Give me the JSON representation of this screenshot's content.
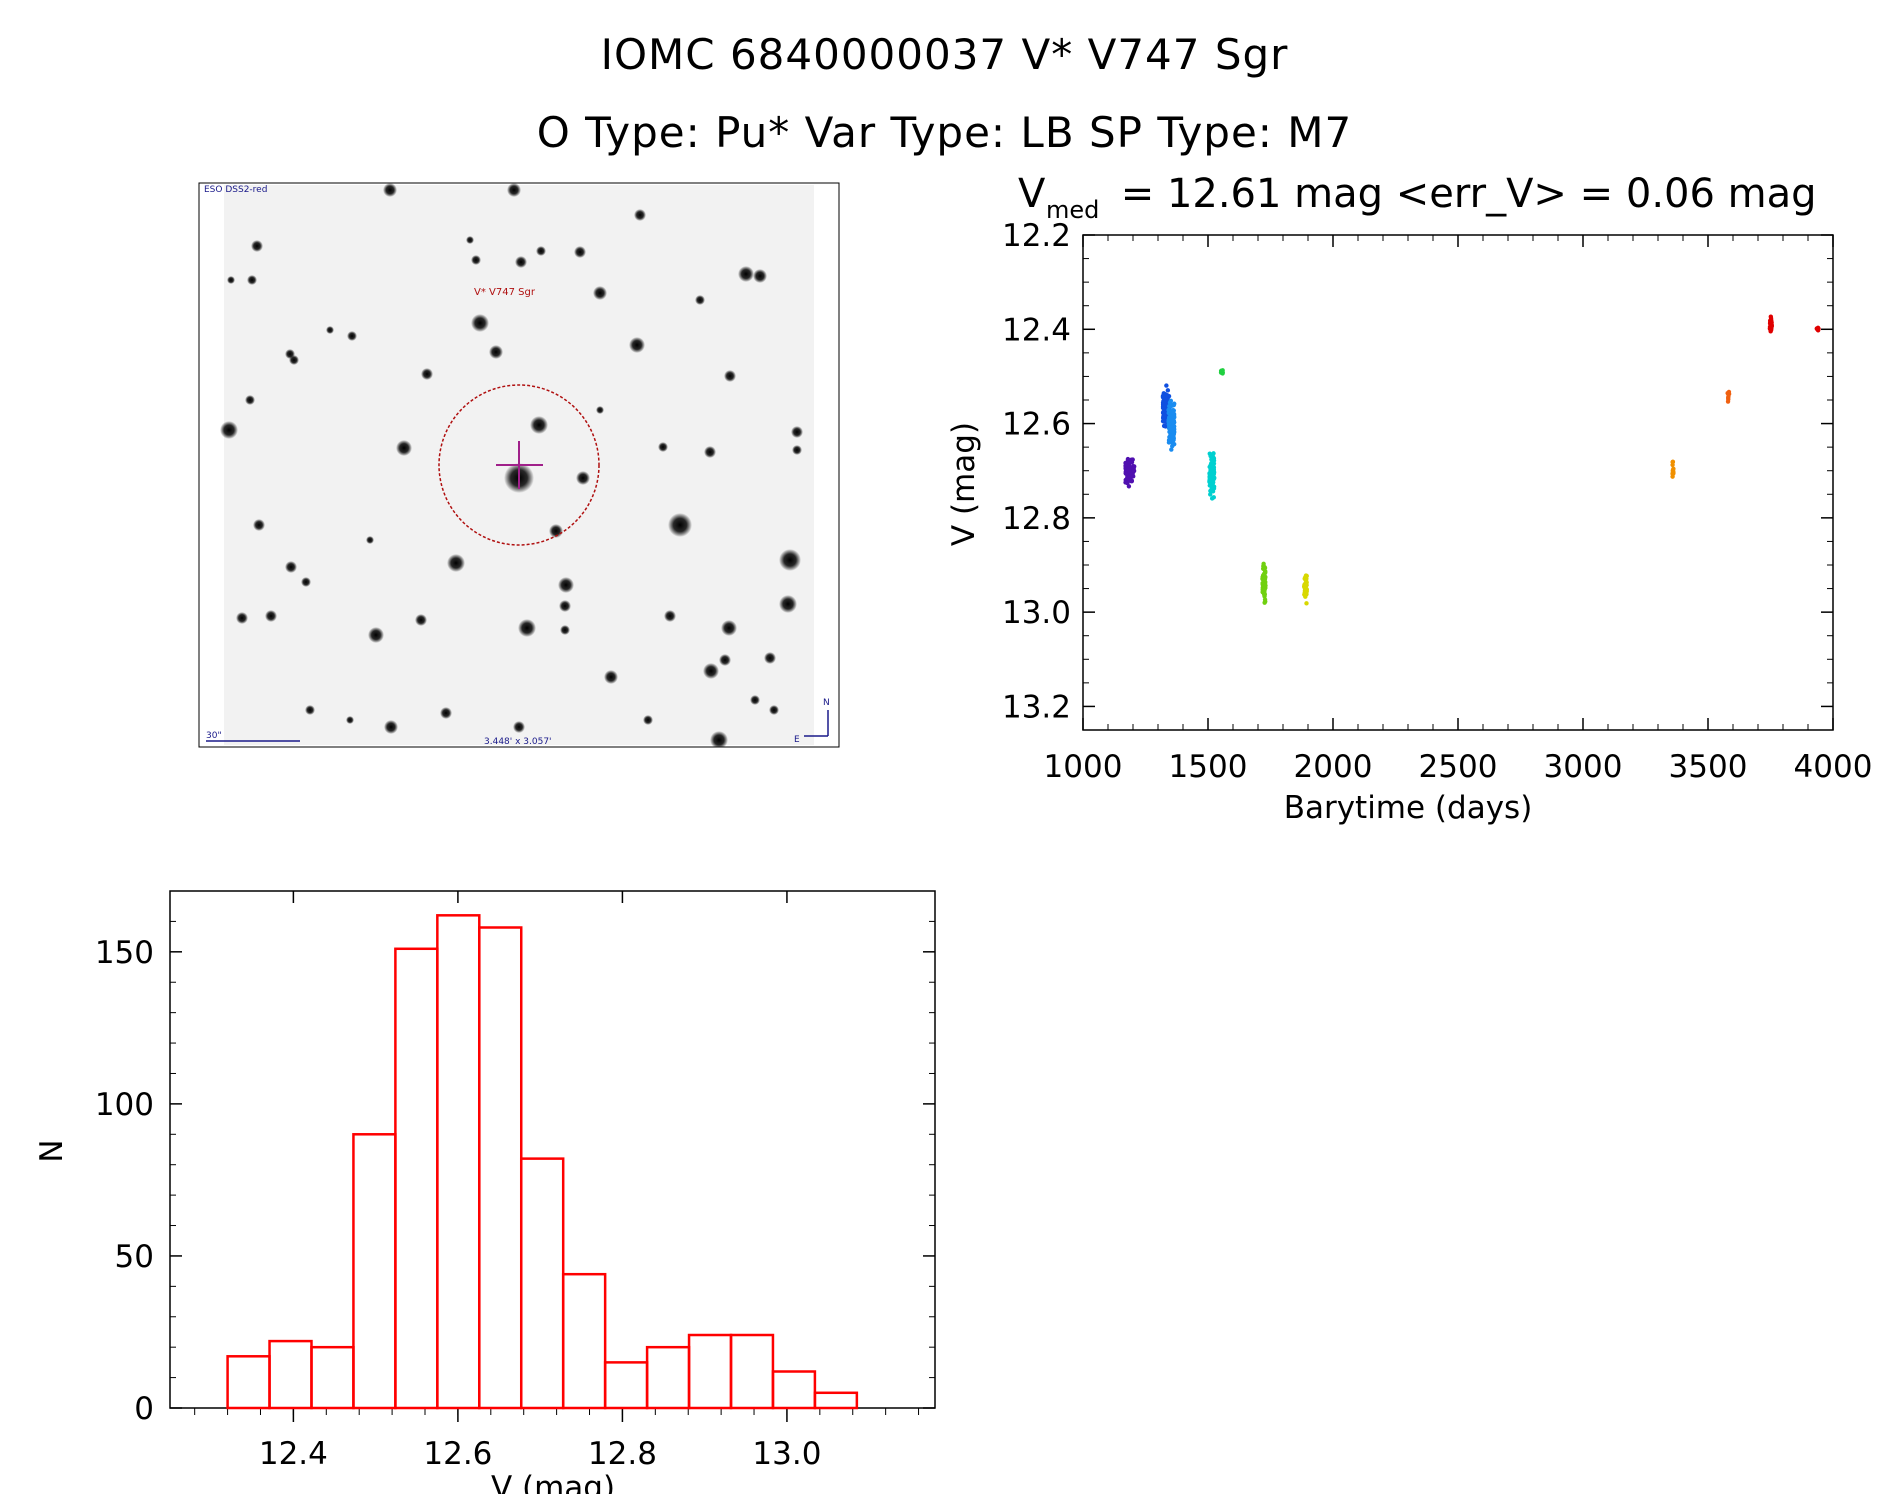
{
  "header": {
    "line1": "IOMC 6840000037    V* V747 Sgr",
    "line2": "O Type: Pu*   Var Type: LB   SP Type: M7"
  },
  "finder": {
    "survey_label": "ESO DSS2-red",
    "target_label": "V* V747 Sgr",
    "scale_label": "30\"",
    "fov_label": "3.448' x 3.057'",
    "north_label": "N",
    "east_label": "E"
  },
  "lightcurve_title": {
    "v_main": "V",
    "v_sub": "med",
    "rest": " = 12.61 mag <err_V> = 0.06 mag"
  },
  "chart_data": [
    {
      "type": "scatter",
      "title": "V_med = 12.61 mag <err_V> = 0.06 mag",
      "xlabel": "Barytime (days)",
      "ylabel": "V (mag)",
      "xlim": [
        1000,
        4000
      ],
      "ylim": [
        13.25,
        12.2
      ],
      "xticks": [
        1000,
        1500,
        2000,
        2500,
        3000,
        3500,
        4000
      ],
      "xtick_labels": [
        "1000",
        "1500",
        "2000",
        "2500",
        "3000",
        "3500",
        "4000"
      ],
      "yticks": [
        12.2,
        12.4,
        12.6,
        12.8,
        13.0,
        13.2
      ],
      "ytick_labels": [
        "12.2",
        "12.4",
        "12.6",
        "12.8",
        "13.0",
        "13.2"
      ],
      "groups": [
        {
          "t": [
            1170,
            1205
          ],
          "v_mean": 12.7,
          "v_spread": 0.06,
          "n": 80,
          "color": "#5010b0"
        },
        {
          "t": [
            1320,
            1345
          ],
          "v_mean": 12.57,
          "v_spread": 0.07,
          "n": 190,
          "color": "#1050e0"
        },
        {
          "t": [
            1342,
            1365
          ],
          "v_mean": 12.6,
          "v_spread": 0.1,
          "n": 140,
          "color": "#1a8cf0"
        },
        {
          "t": [
            1505,
            1525
          ],
          "v_mean": 12.71,
          "v_spread": 0.09,
          "n": 90,
          "color": "#00d0d0"
        },
        {
          "t": [
            1552,
            1560
          ],
          "v_mean": 12.49,
          "v_spread": 0.01,
          "n": 12,
          "color": "#20d040"
        },
        {
          "t": [
            1718,
            1730
          ],
          "v_mean": 12.94,
          "v_spread": 0.07,
          "n": 70,
          "color": "#70d010"
        },
        {
          "t": [
            1885,
            1895
          ],
          "v_mean": 12.95,
          "v_spread": 0.05,
          "n": 40,
          "color": "#d8d800"
        },
        {
          "t": [
            3358,
            3362
          ],
          "v_mean": 12.7,
          "v_spread": 0.05,
          "n": 15,
          "color": "#f09000"
        },
        {
          "t": [
            3578,
            3585
          ],
          "v_mean": 12.54,
          "v_spread": 0.03,
          "n": 8,
          "color": "#f06010"
        },
        {
          "t": [
            3748,
            3755
          ],
          "v_mean": 12.39,
          "v_spread": 0.03,
          "n": 40,
          "color": "#e00000"
        },
        {
          "t": [
            3935,
            3942
          ],
          "v_mean": 12.4,
          "v_spread": 0.01,
          "n": 8,
          "color": "#e00000"
        }
      ]
    },
    {
      "type": "histogram",
      "xlabel": "V (mag)",
      "ylabel": "N",
      "xlim": [
        12.25,
        13.18
      ],
      "ylim": [
        0,
        170
      ],
      "xticks": [
        12.4,
        12.6,
        12.8,
        13.0
      ],
      "xtick_labels": [
        "12.4",
        "12.6",
        "12.8",
        "13.0"
      ],
      "yticks": [
        0,
        50,
        100,
        150
      ],
      "ytick_labels": [
        "0",
        "50",
        "100",
        "150"
      ],
      "bin_width": 0.051,
      "bins": [
        {
          "left": 12.32,
          "count": 17
        },
        {
          "left": 12.371,
          "count": 22
        },
        {
          "left": 12.422,
          "count": 20
        },
        {
          "left": 12.473,
          "count": 90
        },
        {
          "left": 12.524,
          "count": 151
        },
        {
          "left": 12.575,
          "count": 162
        },
        {
          "left": 12.626,
          "count": 158
        },
        {
          "left": 12.677,
          "count": 82
        },
        {
          "left": 12.728,
          "count": 44
        },
        {
          "left": 12.779,
          "count": 15
        },
        {
          "left": 12.83,
          "count": 20
        },
        {
          "left": 12.881,
          "count": 24
        },
        {
          "left": 12.932,
          "count": 24
        },
        {
          "left": 12.983,
          "count": 12
        },
        {
          "left": 13.034,
          "count": 5
        }
      ],
      "color": "#ff0000"
    }
  ]
}
